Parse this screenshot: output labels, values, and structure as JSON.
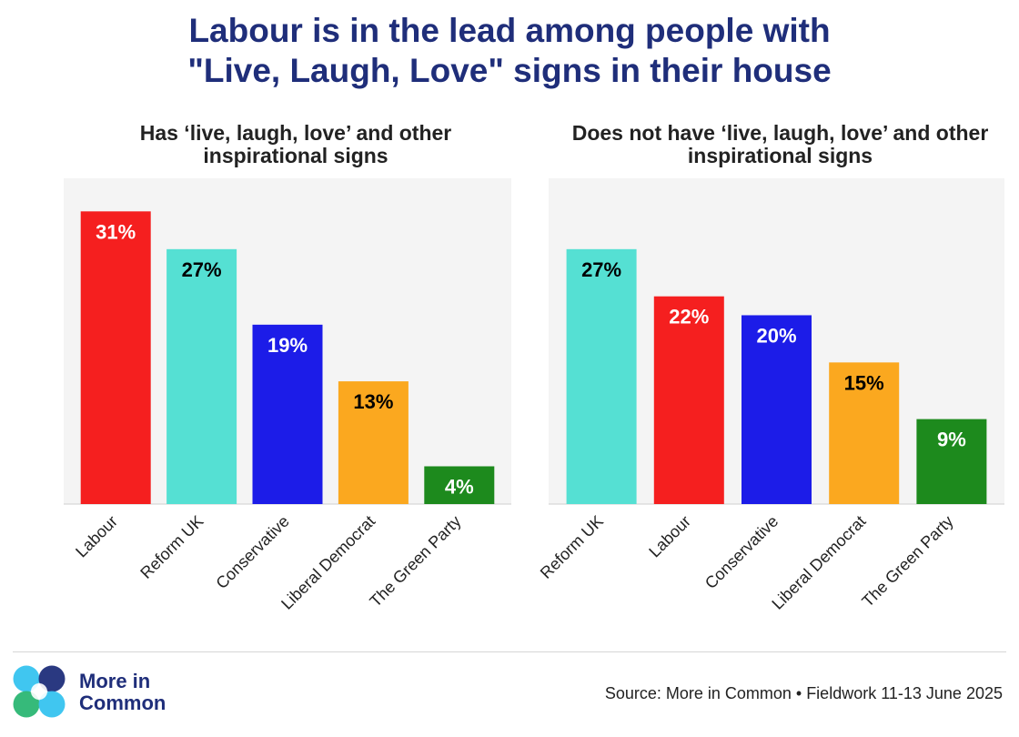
{
  "title_line1": "Labour is in the lead among people with",
  "title_line2": "\"Live, Laugh, Love\" signs in their house",
  "chart_data": [
    {
      "type": "bar",
      "title_line1": "Has ‘live, laugh, love’ and other",
      "title_line2": "inspirational signs",
      "categories": [
        "Labour",
        "Reform UK",
        "Conservative",
        "Liberal Democrat",
        "The Green Party"
      ],
      "values": [
        31,
        27,
        19,
        13,
        4
      ],
      "labels": [
        "31%",
        "27%",
        "19%",
        "13%",
        "4%"
      ],
      "colors": [
        "#f51f1f",
        "#55e0d3",
        "#1c1ce8",
        "#fba81f",
        "#1d8a1d"
      ],
      "label_colors": [
        "#ffffff",
        "#000000",
        "#ffffff",
        "#000000",
        "#ffffff"
      ],
      "ylim": [
        0,
        34.5
      ]
    },
    {
      "type": "bar",
      "title_line1": "Does not have ‘live, laugh, love’ and other",
      "title_line2": "inspirational signs",
      "categories": [
        "Reform UK",
        "Labour",
        "Conservative",
        "Liberal Democrat",
        "The Green Party"
      ],
      "values": [
        27,
        22,
        20,
        15,
        9
      ],
      "labels": [
        "27%",
        "22%",
        "20%",
        "15%",
        "9%"
      ],
      "colors": [
        "#55e0d3",
        "#f51f1f",
        "#1c1ce8",
        "#fba81f",
        "#1d8a1d"
      ],
      "label_colors": [
        "#000000",
        "#ffffff",
        "#ffffff",
        "#000000",
        "#ffffff"
      ],
      "ylim": [
        0,
        34.5
      ]
    }
  ],
  "logo": {
    "line1": "More in",
    "line2": "Common",
    "colors": [
      "#36c3ef",
      "#1f2e7a",
      "#2bb673"
    ]
  },
  "source": "Source: More in Common • Fieldwork 11-13 June 2025"
}
